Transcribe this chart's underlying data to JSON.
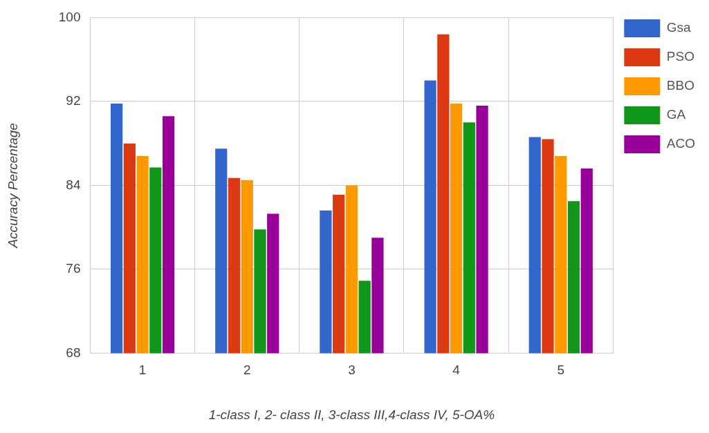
{
  "chart_data": {
    "type": "bar",
    "xlabel": "1-class I, 2- class II, 3-class III,4-class IV, 5-OA%",
    "ylabel": "Accuracy Percentage",
    "categories": [
      "1",
      "2",
      "3",
      "4",
      "5"
    ],
    "series": [
      {
        "name": "Gsa",
        "color": "#3366cc",
        "values": [
          91.8,
          87.5,
          81.6,
          94,
          88.6
        ]
      },
      {
        "name": "PSO",
        "color": "#dc3912",
        "values": [
          88,
          84.7,
          83.1,
          98.4,
          88.4
        ]
      },
      {
        "name": "BBO",
        "color": "#ff9900",
        "values": [
          86.8,
          84.5,
          84,
          91.8,
          86.8
        ]
      },
      {
        "name": "GA",
        "color": "#109618",
        "values": [
          85.7,
          79.8,
          74.9,
          90,
          82.5
        ]
      },
      {
        "name": "ACO",
        "color": "#990099",
        "values": [
          90.6,
          81.3,
          79,
          91.6,
          85.6
        ]
      }
    ],
    "ylim": [
      68,
      100
    ],
    "yticks": [
      68,
      76,
      84,
      92,
      100
    ],
    "grid": true,
    "legend": "top right"
  }
}
